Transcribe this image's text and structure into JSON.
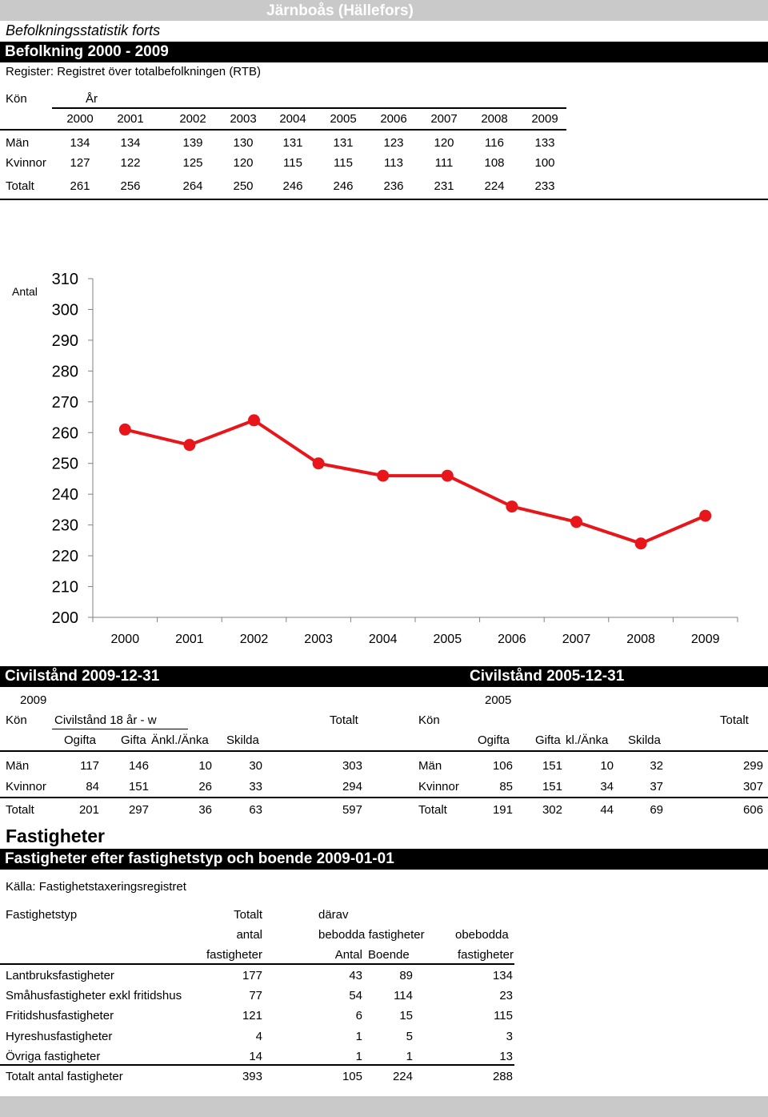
{
  "header": {
    "place": "Järnboås (Hällefors)",
    "section_italic": "Befolkningsstatistik forts",
    "band_title": "Befolkning 2000 - 2009",
    "register": "Register: Registret över totalbefolkningen (RTB)"
  },
  "pop_table": {
    "kon_label": "Kön",
    "ar_label": "År",
    "years": [
      "2000",
      "2001",
      "2002",
      "2003",
      "2004",
      "2005",
      "2006",
      "2007",
      "2008",
      "2009"
    ],
    "rows": [
      {
        "label": "Män",
        "values": [
          "134",
          "134",
          "139",
          "130",
          "131",
          "131",
          "123",
          "120",
          "116",
          "133"
        ]
      },
      {
        "label": "Kvinnor",
        "values": [
          "127",
          "122",
          "125",
          "120",
          "115",
          "115",
          "113",
          "111",
          "108",
          "100"
        ]
      },
      {
        "label": "Totalt",
        "values": [
          "261",
          "256",
          "264",
          "250",
          "246",
          "246",
          "236",
          "231",
          "224",
          "233"
        ]
      }
    ]
  },
  "chart_data": {
    "type": "line",
    "ylabel": "Antal",
    "x": [
      "2000",
      "2001",
      "2002",
      "2003",
      "2004",
      "2005",
      "2006",
      "2007",
      "2008",
      "2009"
    ],
    "series": [
      {
        "values": [
          261,
          256,
          264,
          250,
          246,
          246,
          236,
          231,
          224,
          233
        ]
      }
    ],
    "ylim": [
      200,
      310
    ],
    "yticks": [
      200,
      210,
      220,
      230,
      240,
      250,
      260,
      270,
      280,
      290,
      300,
      310
    ],
    "color": "#e8161b",
    "grid": false
  },
  "civil_2009": {
    "band_title": "Civilstånd 2009-12-31",
    "year": "2009",
    "kon_label": "Kön",
    "civil_label": "Civilstånd 18 år - w",
    "totalt_label": "Totalt",
    "cols": [
      "Ogifta",
      "Gifta",
      "Änkl./Änka",
      "Skilda"
    ],
    "rows": [
      {
        "label": "Män",
        "values": [
          "117",
          "146",
          "10",
          "30"
        ],
        "total": "303"
      },
      {
        "label": "Kvinnor",
        "values": [
          "84",
          "151",
          "26",
          "33"
        ],
        "total": "294"
      },
      {
        "label": "Totalt",
        "values": [
          "201",
          "297",
          "36",
          "63"
        ],
        "total": "597"
      }
    ]
  },
  "civil_2005": {
    "band_title": "Civilstånd 2005-12-31",
    "year": "2005",
    "kon_label": "Kön",
    "totalt_label": "Totalt",
    "cols": [
      "Ogifta",
      "Gifta",
      "kl./Änka",
      "Skilda"
    ],
    "rows": [
      {
        "label": "Män",
        "values": [
          "106",
          "151",
          "10",
          "32"
        ],
        "total": "299"
      },
      {
        "label": "Kvinnor",
        "values": [
          "85",
          "151",
          "34",
          "37"
        ],
        "total": "307"
      },
      {
        "label": "Totalt",
        "values": [
          "191",
          "302",
          "44",
          "69"
        ],
        "total": "606"
      }
    ]
  },
  "fastigheter": {
    "heading": "Fastigheter",
    "band_title": "Fastigheter efter fastighetstyp och boende 2009-01-01",
    "source": "Källa: Fastighetstaxeringsregistret",
    "col_fastighetstyp": "Fastighetstyp",
    "col_totalt": "Totalt",
    "col_antal": "antal",
    "col_fastigheter": "fastigheter",
    "col_darav": "därav",
    "col_bebodda": "bebodda fastigheter",
    "col_antal2": "Antal",
    "col_boende": "Boende",
    "col_obebodda": "obebodda",
    "col_obebodda_fast": "fastigheter",
    "rows": [
      {
        "label": "Lantbruksfastigheter",
        "total": "177",
        "antal": "43",
        "boende": "89",
        "obebodda": "134"
      },
      {
        "label": "Småhusfastigheter exkl fritidshus",
        "total": "77",
        "antal": "54",
        "boende": "114",
        "obebodda": "23"
      },
      {
        "label": "Fritidshusfastigheter",
        "total": "121",
        "antal": "6",
        "boende": "15",
        "obebodda": "115"
      },
      {
        "label": "Hyreshusfastigheter",
        "total": "4",
        "antal": "1",
        "boende": "5",
        "obebodda": "3"
      },
      {
        "label": "Övriga fastigheter",
        "total": "14",
        "antal": "1",
        "boende": "1",
        "obebodda": "13"
      },
      {
        "label": "Totalt antal fastigheter",
        "total": "393",
        "antal": "105",
        "boende": "224",
        "obebodda": "288"
      }
    ]
  }
}
